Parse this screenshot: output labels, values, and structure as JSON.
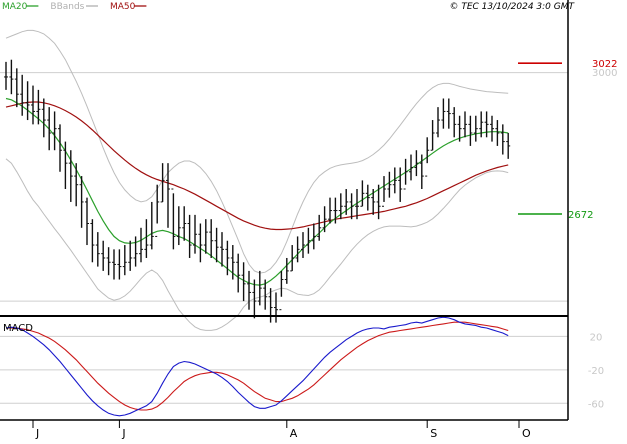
{
  "legend": {
    "items": [
      {
        "label": "MA20",
        "color": "#2ca02c"
      },
      {
        "label": "BBands",
        "color": "#b0b0b0"
      },
      {
        "label": "MA50",
        "color": "#a01010"
      }
    ]
  },
  "copyright": "© TEC 13/10/2024 3:0 GMT",
  "colors": {
    "price": "#111111",
    "ma20": "#2ca02c",
    "ma50": "#a01010",
    "bbands": "#bdbdbd",
    "macd": "#1a1acc",
    "signal": "#cc1a1a",
    "resistance": "#cc0000",
    "support": "#119911",
    "reference": "#cfcfcf",
    "frame": "#000000"
  },
  "chart_data": [
    {
      "type": "ohlc",
      "panel": "price",
      "x_axis": {
        "months": [
          "J",
          "J",
          "A",
          "S",
          "O"
        ],
        "month_index": [
          5,
          21,
          52,
          78,
          95
        ]
      },
      "ylim": [
        2440,
        3150
      ],
      "reference_levels": [
        3000
      ],
      "resistance": {
        "label": "3022",
        "value": 3022
      },
      "support": {
        "label": "2672",
        "value": 2672
      },
      "secondary_tick": "3000",
      "series": {
        "close": [
          2990,
          2985,
          2950,
          2930,
          2925,
          2910,
          2915,
          2890,
          2860,
          2870,
          2820,
          2790,
          2760,
          2740,
          2700,
          2650,
          2600,
          2580,
          2570,
          2560,
          2555,
          2550,
          2560,
          2570,
          2580,
          2590,
          2600,
          2620,
          2700,
          2750,
          2730,
          2620,
          2640,
          2650,
          2600,
          2625,
          2600,
          2630,
          2610,
          2595,
          2590,
          2570,
          2560,
          2530,
          2510,
          2490,
          2470,
          2500,
          2480,
          2455,
          2450,
          2520,
          2540,
          2570,
          2590,
          2600,
          2610,
          2620,
          2640,
          2660,
          2680,
          2680,
          2690,
          2700,
          2690,
          2690,
          2720,
          2710,
          2700,
          2690,
          2730,
          2740,
          2750,
          2730,
          2770,
          2780,
          2790,
          2760,
          2820,
          2860,
          2890,
          2910,
          2905,
          2880,
          2870,
          2880,
          2860,
          2870,
          2885,
          2880,
          2870,
          2860,
          2840,
          2830
        ],
        "high": [
          3025,
          3030,
          3010,
          2995,
          2980,
          2970,
          2960,
          2940,
          2920,
          2910,
          2880,
          2840,
          2820,
          2790,
          2760,
          2710,
          2660,
          2630,
          2610,
          2595,
          2590,
          2590,
          2600,
          2610,
          2620,
          2640,
          2660,
          2700,
          2740,
          2790,
          2790,
          2720,
          2690,
          2690,
          2670,
          2670,
          2650,
          2660,
          2660,
          2640,
          2630,
          2610,
          2600,
          2580,
          2560,
          2540,
          2520,
          2540,
          2520,
          2500,
          2490,
          2540,
          2570,
          2600,
          2620,
          2630,
          2640,
          2650,
          2670,
          2690,
          2710,
          2710,
          2720,
          2730,
          2720,
          2730,
          2750,
          2740,
          2730,
          2740,
          2760,
          2770,
          2780,
          2780,
          2800,
          2810,
          2820,
          2810,
          2850,
          2890,
          2920,
          2940,
          2940,
          2920,
          2900,
          2910,
          2900,
          2900,
          2910,
          2910,
          2900,
          2890,
          2880,
          2860
        ],
        "low": [
          2960,
          2950,
          2920,
          2900,
          2890,
          2880,
          2880,
          2850,
          2820,
          2820,
          2770,
          2730,
          2700,
          2690,
          2640,
          2600,
          2560,
          2550,
          2540,
          2530,
          2520,
          2520,
          2530,
          2540,
          2550,
          2560,
          2570,
          2590,
          2650,
          2700,
          2640,
          2590,
          2600,
          2610,
          2570,
          2580,
          2560,
          2580,
          2570,
          2560,
          2550,
          2530,
          2520,
          2490,
          2470,
          2450,
          2430,
          2460,
          2450,
          2420,
          2420,
          2480,
          2510,
          2540,
          2560,
          2570,
          2580,
          2590,
          2610,
          2630,
          2650,
          2650,
          2660,
          2670,
          2660,
          2660,
          2690,
          2680,
          2670,
          2660,
          2700,
          2710,
          2720,
          2700,
          2740,
          2750,
          2760,
          2730,
          2790,
          2820,
          2850,
          2870,
          2870,
          2850,
          2840,
          2850,
          2830,
          2840,
          2850,
          2850,
          2840,
          2830,
          2810,
          2800
        ]
      },
      "ma20": [
        2940,
        2937,
        2930,
        2922,
        2913,
        2903,
        2893,
        2882,
        2869,
        2854,
        2837,
        2818,
        2797,
        2775,
        2752,
        2728,
        2703,
        2678,
        2656,
        2636,
        2620,
        2610,
        2605,
        2604,
        2606,
        2611,
        2619,
        2627,
        2632,
        2634,
        2631,
        2626,
        2620,
        2615,
        2608,
        2600,
        2592,
        2584,
        2575,
        2565,
        2555,
        2545,
        2535,
        2525,
        2518,
        2512,
        2508,
        2507,
        2510,
        2518,
        2528,
        2540,
        2553,
        2566,
        2579,
        2592,
        2604,
        2616,
        2628,
        2640,
        2652,
        2662,
        2671,
        2680,
        2689,
        2697,
        2705,
        2713,
        2721,
        2729,
        2737,
        2745,
        2753,
        2761,
        2769,
        2777,
        2786,
        2795,
        2804,
        2813,
        2822,
        2830,
        2837,
        2843,
        2848,
        2852,
        2855,
        2858,
        2860,
        2862,
        2863,
        2863,
        2862,
        2860
      ],
      "ma50": [
        2920,
        2923,
        2926,
        2929,
        2931,
        2932,
        2932,
        2930,
        2927,
        2923,
        2918,
        2912,
        2905,
        2897,
        2888,
        2878,
        2867,
        2855,
        2843,
        2831,
        2819,
        2808,
        2797,
        2787,
        2778,
        2770,
        2763,
        2757,
        2752,
        2748,
        2744,
        2740,
        2735,
        2730,
        2724,
        2718,
        2711,
        2704,
        2697,
        2690,
        2683,
        2676,
        2669,
        2662,
        2656,
        2651,
        2646,
        2642,
        2639,
        2637,
        2636,
        2636,
        2637,
        2638,
        2640,
        2642,
        2645,
        2648,
        2651,
        2654,
        2657,
        2660,
        2662,
        2664,
        2666,
        2668,
        2670,
        2672,
        2674,
        2676,
        2678,
        2681,
        2684,
        2687,
        2690,
        2694,
        2698,
        2703,
        2708,
        2714,
        2720,
        2726,
        2732,
        2738,
        2744,
        2750,
        2756,
        2762,
        2767,
        2772,
        2776,
        2780,
        2783,
        2786
      ],
      "bb_upper": [
        3080,
        3085,
        3090,
        3095,
        3098,
        3098,
        3095,
        3090,
        3080,
        3068,
        3050,
        3030,
        3005,
        2980,
        2952,
        2922,
        2890,
        2858,
        2825,
        2795,
        2768,
        2745,
        2728,
        2715,
        2705,
        2700,
        2703,
        2712,
        2730,
        2750,
        2768,
        2780,
        2790,
        2795,
        2795,
        2790,
        2780,
        2766,
        2748,
        2726,
        2700,
        2672,
        2642,
        2612,
        2580,
        2555,
        2540,
        2535,
        2537,
        2545,
        2560,
        2580,
        2608,
        2640,
        2672,
        2700,
        2725,
        2745,
        2760,
        2770,
        2778,
        2783,
        2786,
        2788,
        2790,
        2792,
        2796,
        2802,
        2810,
        2820,
        2832,
        2846,
        2862,
        2878,
        2895,
        2912,
        2928,
        2942,
        2955,
        2965,
        2972,
        2975,
        2975,
        2972,
        2968,
        2965,
        2962,
        2960,
        2958,
        2956,
        2955,
        2954,
        2953,
        2952
      ],
      "bb_lower": [
        2800,
        2790,
        2770,
        2748,
        2725,
        2705,
        2690,
        2672,
        2655,
        2638,
        2622,
        2605,
        2588,
        2570,
        2552,
        2534,
        2516,
        2498,
        2487,
        2477,
        2472,
        2475,
        2482,
        2493,
        2507,
        2522,
        2535,
        2542,
        2534,
        2518,
        2494,
        2472,
        2450,
        2435,
        2421,
        2410,
        2404,
        2402,
        2402,
        2404,
        2410,
        2418,
        2428,
        2438,
        2456,
        2469,
        2476,
        2479,
        2483,
        2491,
        2496,
        2500,
        2498,
        2492,
        2486,
        2484,
        2483,
        2487,
        2496,
        2510,
        2526,
        2541,
        2556,
        2572,
        2588,
        2602,
        2614,
        2624,
        2632,
        2638,
        2642,
        2644,
        2644,
        2644,
        2643,
        2642,
        2644,
        2648,
        2653,
        2661,
        2672,
        2685,
        2699,
        2714,
        2728,
        2739,
        2748,
        2756,
        2762,
        2768,
        2771,
        2772,
        2771,
        2768
      ]
    },
    {
      "type": "line",
      "panel": "macd",
      "title": "MACD",
      "ylim": [
        -80,
        42
      ],
      "reference_levels": [
        20,
        -20,
        -60
      ],
      "y_ticks": [
        "20",
        "-20",
        "-60"
      ],
      "series": [
        {
          "name": "MACD",
          "values": [
            30,
            31,
            30,
            28,
            24,
            20,
            15,
            10,
            4,
            -3,
            -10,
            -18,
            -26,
            -34,
            -42,
            -50,
            -57,
            -63,
            -68,
            -72,
            -74,
            -75,
            -74,
            -72,
            -69,
            -66,
            -63,
            -58,
            -48,
            -36,
            -25,
            -16,
            -12,
            -10,
            -11,
            -13,
            -16,
            -19,
            -22,
            -25,
            -29,
            -34,
            -40,
            -47,
            -53,
            -59,
            -64,
            -66,
            -66,
            -64,
            -62,
            -57,
            -51,
            -45,
            -39,
            -33,
            -26,
            -19,
            -12,
            -5,
            1,
            6,
            11,
            16,
            20,
            24,
            27,
            29,
            30,
            30,
            29,
            31,
            32,
            33,
            34,
            36,
            37,
            36,
            38,
            40,
            42,
            43,
            42,
            40,
            37,
            35,
            34,
            33,
            31,
            30,
            28,
            26,
            24,
            21
          ]
        },
        {
          "name": "Signal",
          "values": [
            30,
            30,
            30,
            29,
            28,
            26,
            24,
            21,
            18,
            14,
            9,
            4,
            -2,
            -8,
            -15,
            -22,
            -29,
            -36,
            -42,
            -48,
            -53,
            -58,
            -62,
            -65,
            -67,
            -68,
            -68,
            -67,
            -64,
            -59,
            -53,
            -46,
            -40,
            -34,
            -30,
            -27,
            -25,
            -24,
            -23,
            -23,
            -24,
            -26,
            -29,
            -32,
            -36,
            -41,
            -46,
            -50,
            -54,
            -56,
            -58,
            -58,
            -56,
            -54,
            -51,
            -47,
            -43,
            -38,
            -32,
            -26,
            -20,
            -14,
            -8,
            -3,
            2,
            7,
            11,
            15,
            18,
            21,
            23,
            25,
            26,
            27,
            28,
            29,
            30,
            31,
            32,
            33,
            34,
            35,
            36,
            37,
            37,
            37,
            36,
            35,
            34,
            33,
            32,
            31,
            29,
            27
          ]
        }
      ]
    }
  ]
}
